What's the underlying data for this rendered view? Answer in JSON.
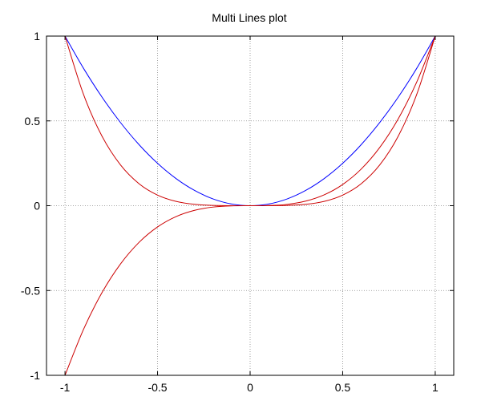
{
  "chart_data": {
    "type": "line",
    "title": "Multi Lines plot",
    "xlabel": "",
    "ylabel": "",
    "xlim": [
      -1.1,
      1.1
    ],
    "ylim": [
      -1,
      1
    ],
    "grid": true,
    "grid_style": "dotted",
    "legend": "none",
    "x_ticks": [
      -1,
      -0.5,
      0,
      0.5,
      1
    ],
    "x_tick_labels": [
      "-1",
      "-0.5",
      "0",
      "0.5",
      "1"
    ],
    "y_ticks": [
      -1,
      -0.5,
      0,
      0.5,
      1
    ],
    "y_tick_labels": [
      "-1",
      "-0.5",
      "0",
      "0.5",
      "1"
    ],
    "x": [
      -1,
      -0.9,
      -0.8,
      -0.7,
      -0.6,
      -0.5,
      -0.4,
      -0.3,
      -0.2,
      -0.1,
      0,
      0.1,
      0.2,
      0.3,
      0.4,
      0.5,
      0.6,
      0.7,
      0.8,
      0.9,
      1
    ],
    "series": [
      {
        "color": "#0000ff",
        "values": [
          1,
          0.81,
          0.64,
          0.49,
          0.36,
          0.25,
          0.16,
          0.09,
          0.04,
          0.01,
          0,
          0.01,
          0.04,
          0.09,
          0.16,
          0.25,
          0.36,
          0.49,
          0.64,
          0.81,
          1
        ]
      },
      {
        "color": "#cc0000",
        "values": [
          -1,
          -0.729,
          -0.512,
          -0.343,
          -0.216,
          -0.125,
          -0.064,
          -0.027,
          -0.008,
          -0.001,
          0,
          0.001,
          0.008,
          0.027,
          0.064,
          0.125,
          0.216,
          0.343,
          0.512,
          0.729,
          1
        ]
      },
      {
        "color": "#cc0000",
        "values": [
          1,
          0.6561,
          0.4096,
          0.2401,
          0.1296,
          0.0625,
          0.0256,
          0.0081,
          0.0016,
          0.0001,
          0,
          0.0001,
          0.0016,
          0.0081,
          0.0256,
          0.0625,
          0.1296,
          0.2401,
          0.4096,
          0.6561,
          1
        ]
      }
    ]
  }
}
